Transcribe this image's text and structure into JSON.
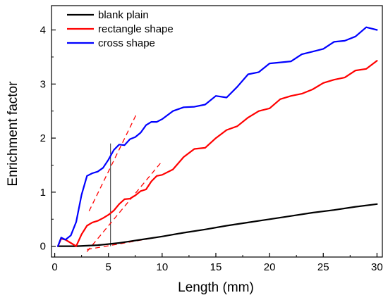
{
  "chart_data": {
    "type": "line",
    "xlabel": "Length (mm)",
    "ylabel": "Enrichment factor",
    "xlim": [
      -0.3,
      30.5
    ],
    "ylim": [
      -0.2,
      4.45
    ],
    "xticks": [
      0,
      5,
      10,
      15,
      20,
      25,
      30
    ],
    "yticks": [
      0,
      1,
      2,
      3,
      4
    ],
    "legend_position": "top-left",
    "series": [
      {
        "name": "blank plain",
        "color": "#000000",
        "x": [
          0.3,
          1,
          2,
          3,
          4,
          5,
          6,
          7,
          8,
          9,
          10,
          12,
          14,
          16,
          18,
          20,
          22,
          24,
          26,
          28,
          30
        ],
        "y": [
          0.0,
          0.0,
          0.0,
          0.01,
          0.02,
          0.04,
          0.06,
          0.09,
          0.12,
          0.15,
          0.18,
          0.25,
          0.31,
          0.38,
          0.44,
          0.5,
          0.56,
          0.62,
          0.67,
          0.73,
          0.78
        ]
      },
      {
        "name": "rectangle shape",
        "color": "#ff0000",
        "x": [
          0.3,
          0.6,
          1.0,
          1.5,
          2.0,
          2.5,
          3.0,
          3.5,
          4.0,
          4.5,
          5.0,
          5.5,
          6.0,
          6.5,
          7.0,
          7.5,
          8.0,
          8.5,
          9.0,
          9.5,
          10.0,
          11.0,
          12.0,
          13.0,
          14.0,
          15.0,
          16.0,
          17.0,
          18.0,
          19.0,
          20.0,
          21.0,
          22.0,
          23.0,
          24.0,
          25.0,
          26.0,
          27.0,
          28.0,
          29.0,
          30.0
        ],
        "y": [
          0.0,
          0.14,
          0.12,
          0.06,
          0.0,
          0.22,
          0.38,
          0.44,
          0.47,
          0.52,
          0.58,
          0.66,
          0.78,
          0.87,
          0.88,
          0.94,
          1.02,
          1.05,
          1.2,
          1.3,
          1.32,
          1.42,
          1.65,
          1.8,
          1.82,
          2.0,
          2.15,
          2.22,
          2.38,
          2.5,
          2.55,
          2.72,
          2.78,
          2.82,
          2.9,
          3.02,
          3.08,
          3.12,
          3.25,
          3.28,
          3.43
        ]
      },
      {
        "name": "cross shape",
        "color": "#0000ff",
        "x": [
          0.3,
          0.6,
          1.0,
          1.5,
          2.0,
          2.5,
          3.0,
          3.5,
          4.0,
          4.5,
          5.0,
          5.5,
          6.0,
          6.5,
          7.0,
          7.5,
          8.0,
          8.5,
          9.0,
          9.5,
          10.0,
          11.0,
          12.0,
          13.0,
          14.0,
          15.0,
          16.0,
          17.0,
          18.0,
          19.0,
          20.0,
          21.0,
          22.0,
          23.0,
          24.0,
          25.0,
          26.0,
          27.0,
          28.0,
          29.0,
          30.0
        ],
        "y": [
          0.0,
          0.16,
          0.12,
          0.2,
          0.45,
          0.95,
          1.3,
          1.35,
          1.38,
          1.45,
          1.6,
          1.78,
          1.88,
          1.87,
          1.98,
          2.02,
          2.1,
          2.24,
          2.3,
          2.3,
          2.35,
          2.5,
          2.57,
          2.58,
          2.62,
          2.78,
          2.75,
          2.95,
          3.18,
          3.22,
          3.38,
          3.4,
          3.42,
          3.55,
          3.6,
          3.65,
          3.78,
          3.8,
          3.88,
          4.05,
          4.0
        ]
      }
    ],
    "annotations": [
      {
        "type": "vline",
        "x": 5.2,
        "y_range": [
          0,
          1.9
        ],
        "color": "#000000"
      },
      {
        "type": "dashed-line",
        "color": "#ff0000",
        "x": [
          3.2,
          7.6
        ],
        "y": [
          0.65,
          2.44
        ]
      },
      {
        "type": "dashed-line",
        "color": "#ff0000",
        "x": [
          3.0,
          9.9
        ],
        "y": [
          -0.1,
          1.55
        ]
      },
      {
        "type": "dashed-line",
        "color": "#ff0000",
        "x": [
          3.0,
          10.0
        ],
        "y": [
          -0.06,
          0.18
        ]
      }
    ]
  }
}
